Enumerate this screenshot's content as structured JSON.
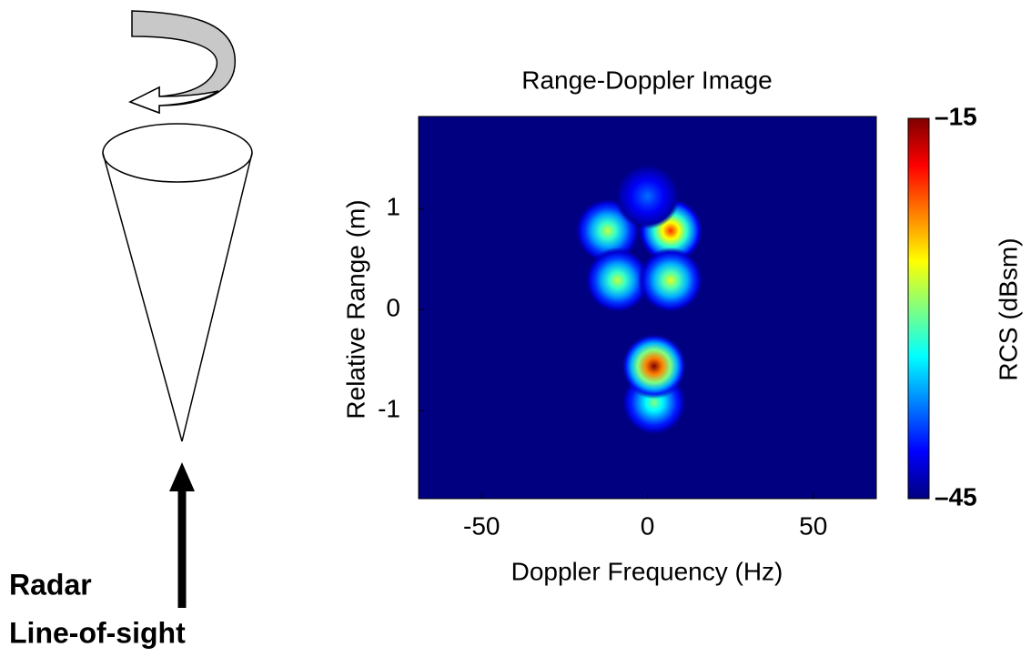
{
  "diagram": {
    "caption": [
      "Radar",
      "Line-of-sight"
    ]
  },
  "chart_data": {
    "type": "heatmap",
    "title": "Range-Doppler Image",
    "x_label": "Doppler Frequency (Hz)",
    "y_label": "Relative Range (m)",
    "xlim": [
      -69,
      69
    ],
    "ylim": [
      -1.87,
      1.91
    ],
    "xticks": [
      -50,
      0,
      50
    ],
    "yticks": [
      -1,
      0,
      1
    ],
    "points": {
      "x": [
        -12,
        7,
        0,
        -9,
        7,
        2,
        2
      ],
      "y": [
        0.78,
        0.78,
        1.12,
        0.29,
        0.29,
        -0.92,
        -0.56
      ],
      "values": [
        -28,
        -20,
        -38,
        -28,
        -27,
        -30,
        -15
      ]
    },
    "colorbar": {
      "label": "RCS (dBsm)",
      "clim": [
        -45,
        -15
      ],
      "ticks": [
        {
          "value": -45,
          "label": "–45"
        },
        {
          "value": -15,
          "label": "–15"
        }
      ],
      "colormap": "jet"
    }
  }
}
